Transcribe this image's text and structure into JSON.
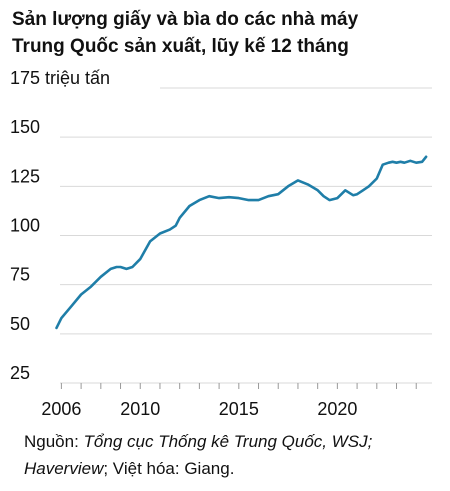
{
  "title": {
    "line1": "Sản lượng giấy và bìa do các nhà máy",
    "line2": "Trung Quốc sản xuất, lũy kế 12 tháng"
  },
  "source": {
    "prefix": "Nguồn: ",
    "part1": "Tổng cục Thống kê Trung Quốc, WSJ;",
    "part2": "Haverview",
    "part3": "; Việt hóa: Giang."
  },
  "colors": {
    "line": "#1f7ea8",
    "grid": "#d9d9d9",
    "text": "#111111"
  },
  "chart_data": {
    "type": "line",
    "title": "Sản lượng giấy và bìa do các nhà máy Trung Quốc sản xuất, lũy kế 12 tháng",
    "xlabel": "",
    "ylabel": "",
    "unit": "triệu tấn",
    "ylim": [
      25,
      175
    ],
    "xlim": [
      2003.9,
      2024.8
    ],
    "yticks": [
      25,
      50,
      75,
      100,
      125,
      150,
      175
    ],
    "ytick_labels": [
      "25",
      "50",
      "75",
      "100",
      "125",
      "150",
      "175 triệu tấn"
    ],
    "xticks": [
      2006,
      2010,
      2015,
      2020
    ],
    "xtick_labels": [
      "2006",
      "2010",
      "2015",
      "2020"
    ],
    "grid": "horizontal",
    "series": [
      {
        "x": [
          2005.75,
          2006.0,
          2006.5,
          2007.0,
          2007.5,
          2008.0,
          2008.5,
          2008.8,
          2009.0,
          2009.3,
          2009.6,
          2010.0,
          2010.5,
          2011.0,
          2011.5,
          2011.8,
          2012.0,
          2012.5,
          2013.0,
          2013.5,
          2014.0,
          2014.5,
          2015.0,
          2015.5,
          2016.0,
          2016.5,
          2017.0,
          2017.5,
          2018.0,
          2018.5,
          2019.0,
          2019.3,
          2019.6,
          2020.0,
          2020.4,
          2020.8,
          2021.0,
          2021.3,
          2021.6,
          2022.0,
          2022.3,
          2022.6,
          2022.8,
          2023.0,
          2023.2,
          2023.4,
          2023.7,
          2024.0,
          2024.3,
          2024.5
        ],
        "y": [
          53,
          58,
          64,
          70,
          74,
          79,
          83,
          84,
          84,
          83,
          84,
          88,
          97,
          101,
          103,
          105,
          109,
          115,
          118,
          120,
          119,
          119.5,
          119,
          118,
          118,
          120,
          121,
          125,
          128,
          126,
          123,
          120,
          118,
          119,
          123,
          120.5,
          121,
          123,
          125,
          129,
          136,
          137,
          137.5,
          137,
          137.5,
          137,
          138,
          137,
          137.5,
          140
        ]
      }
    ]
  }
}
